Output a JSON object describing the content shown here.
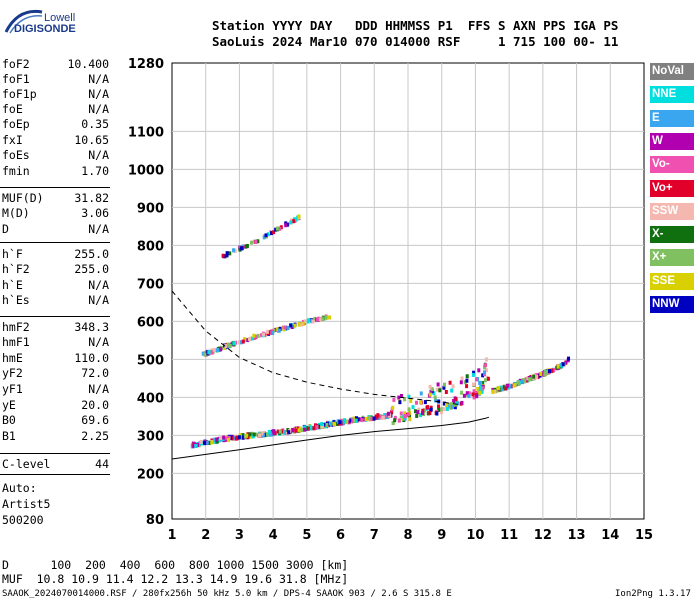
{
  "logo": {
    "line1": "Lowell",
    "line2": "DIGISONDE"
  },
  "header": {
    "line1": "Station YYYY DAY   DDD HHMMSS P1  FFS S AXN PPS IGA PS",
    "line2": "SaoLuis 2024 Mar10 070 014000 RSF     1 715 100 00- 11"
  },
  "params": [
    {
      "k": "foF2",
      "v": "10.400"
    },
    {
      "k": "foF1",
      "v": "N/A"
    },
    {
      "k": "foF1p",
      "v": "N/A"
    },
    {
      "k": "foE",
      "v": "N/A"
    },
    {
      "k": "foEp",
      "v": "0.35"
    },
    {
      "k": "fxI",
      "v": "10.65"
    },
    {
      "k": "foEs",
      "v": "N/A"
    },
    {
      "k": "fmin",
      "v": "1.70"
    },
    {
      "k": "MUF(D)",
      "v": "31.82"
    },
    {
      "k": "M(D)",
      "v": "3.06"
    },
    {
      "k": "D",
      "v": "N/A"
    },
    {
      "k": "h`F",
      "v": "255.0"
    },
    {
      "k": "h`F2",
      "v": "255.0"
    },
    {
      "k": "h`E",
      "v": "N/A"
    },
    {
      "k": "h`Es",
      "v": "N/A"
    },
    {
      "k": "hmF2",
      "v": "348.3"
    },
    {
      "k": "hmF1",
      "v": "N/A"
    },
    {
      "k": "hmE",
      "v": "110.0"
    },
    {
      "k": "yF2",
      "v": "72.0"
    },
    {
      "k": "yF1",
      "v": "N/A"
    },
    {
      "k": "yE",
      "v": "20.0"
    },
    {
      "k": "B0",
      "v": "69.6"
    },
    {
      "k": "B1",
      "v": "2.25"
    },
    {
      "k": "C-level",
      "v": "44"
    }
  ],
  "auto": {
    "line1": "Auto:",
    "line2": "Artist5",
    "line3": "500200"
  },
  "legend": [
    {
      "label": "NoVal",
      "color": "#808080"
    },
    {
      "label": "NNE",
      "color": "#00dede"
    },
    {
      "label": "E",
      "color": "#3aa6f0"
    },
    {
      "label": "W",
      "color": "#b000b0"
    },
    {
      "label": "Vo-",
      "color": "#f050b0"
    },
    {
      "label": "Vo+",
      "color": "#e0002a"
    },
    {
      "label": "SSW",
      "color": "#f4b8b0"
    },
    {
      "label": "X-",
      "color": "#107010"
    },
    {
      "label": "X+",
      "color": "#80c060"
    },
    {
      "label": "SSE",
      "color": "#d8d000"
    },
    {
      "label": "NNW",
      "color": "#0000c0"
    }
  ],
  "footer": {
    "d_row": "D      100  200  400  600  800 1000 1500 3000 [km]",
    "muf_row": "MUF  10.8 10.9 11.4 12.2 13.3 14.9 19.6 31.8 [MHz]",
    "file": "SAAOK_2024070014000.RSF / 280fx256h 50 kHz 5.0 km / DPS-4 SAAOK 903 / 2.6 S 315.8 E",
    "version": "Ion2Png 1.3.17"
  },
  "chart_data": {
    "type": "scatter",
    "title": "",
    "xlabel": "",
    "ylabel": "",
    "xlim": [
      1,
      15
    ],
    "ylim": [
      80,
      1280
    ],
    "grid": true,
    "x_ticks": [
      1,
      2,
      3,
      4,
      5,
      6,
      7,
      8,
      9,
      10,
      11,
      12,
      13,
      14,
      15
    ],
    "y_ticks": [
      80,
      200,
      300,
      400,
      500,
      600,
      700,
      800,
      900,
      1000,
      1100,
      1280
    ],
    "series": [
      {
        "name": "O-trace F2 (virtual height)",
        "points": [
          [
            1.6,
            272
          ],
          [
            2.0,
            280
          ],
          [
            2.5,
            288
          ],
          [
            3.0,
            295
          ],
          [
            3.5,
            300
          ],
          [
            4.0,
            305
          ],
          [
            4.5,
            310
          ],
          [
            5.0,
            318
          ],
          [
            5.5,
            325
          ],
          [
            6.0,
            333
          ],
          [
            6.5,
            340
          ],
          [
            7.0,
            346
          ],
          [
            7.5,
            352
          ],
          [
            8.0,
            362
          ],
          [
            8.5,
            372
          ],
          [
            9.0,
            382
          ],
          [
            9.5,
            398
          ],
          [
            10.0,
            418
          ],
          [
            10.4,
            455
          ]
        ]
      },
      {
        "name": "X-trace F2",
        "points": [
          [
            10.5,
            415
          ],
          [
            11.0,
            428
          ],
          [
            11.5,
            445
          ],
          [
            12.0,
            460
          ],
          [
            12.5,
            480
          ],
          [
            12.8,
            500
          ]
        ]
      },
      {
        "name": "Second hop",
        "points": [
          [
            1.9,
            510
          ],
          [
            2.5,
            530
          ],
          [
            3.0,
            545
          ],
          [
            3.5,
            560
          ],
          [
            4.0,
            572
          ],
          [
            4.5,
            585
          ],
          [
            5.0,
            598
          ],
          [
            5.5,
            608
          ],
          [
            5.7,
            612
          ]
        ]
      },
      {
        "name": "Third hop",
        "points": [
          [
            2.5,
            770
          ],
          [
            3.0,
            790
          ],
          [
            3.5,
            810
          ],
          [
            4.0,
            835
          ],
          [
            4.5,
            860
          ],
          [
            4.8,
            875
          ]
        ]
      }
    ],
    "lines": [
      {
        "name": "Profile (true height)",
        "points": [
          [
            1.0,
            238
          ],
          [
            2.0,
            250
          ],
          [
            3.0,
            262
          ],
          [
            4.0,
            275
          ],
          [
            5.0,
            288
          ],
          [
            6.0,
            300
          ],
          [
            7.0,
            310
          ],
          [
            8.0,
            318
          ],
          [
            9.0,
            326
          ],
          [
            9.8,
            335
          ],
          [
            10.3,
            345
          ],
          [
            10.4,
            348
          ]
        ]
      },
      {
        "name": "Dashed MUF curve",
        "style": "dashed",
        "points": [
          [
            1.0,
            680
          ],
          [
            2.0,
            575
          ],
          [
            3.0,
            505
          ],
          [
            4.0,
            465
          ],
          [
            5.0,
            440
          ],
          [
            6.0,
            422
          ],
          [
            7.0,
            408
          ],
          [
            8.0,
            398
          ],
          [
            9.0,
            388
          ],
          [
            9.6,
            380
          ]
        ]
      }
    ]
  }
}
